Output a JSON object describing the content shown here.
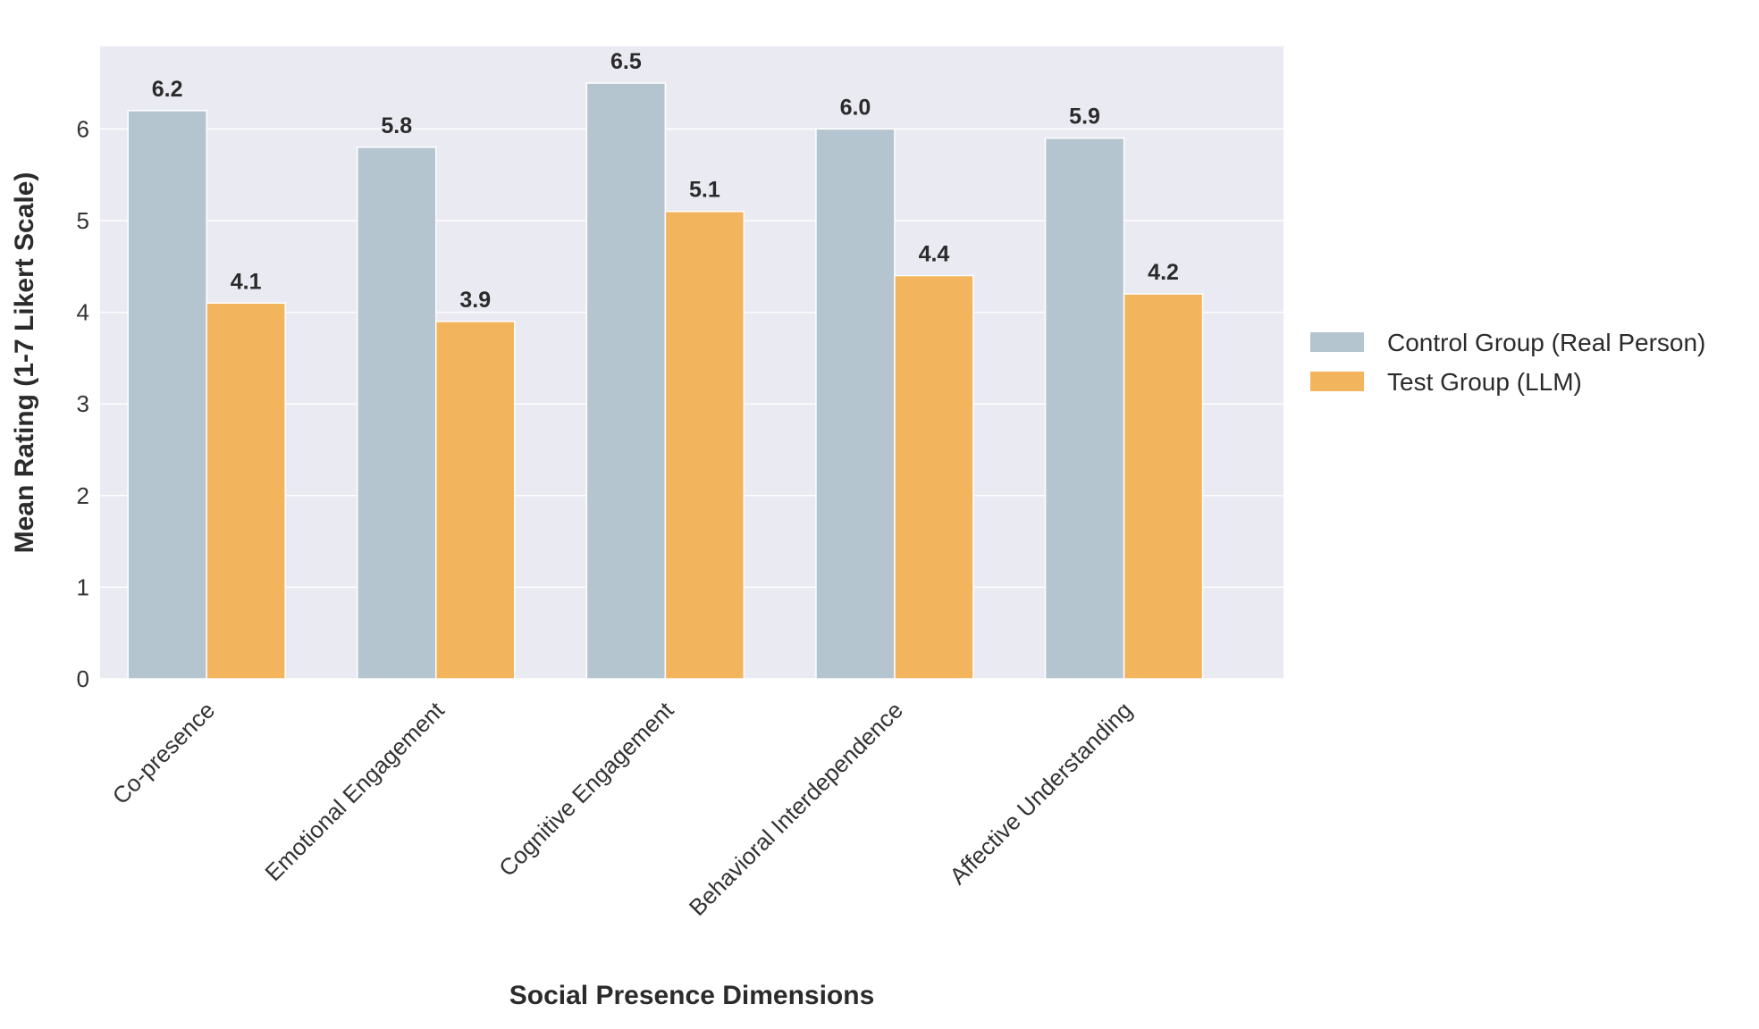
{
  "chart_data": {
    "type": "bar",
    "title": "",
    "xlabel": "Social Presence Dimensions",
    "ylabel": "Mean Rating (1-7 Likert Scale)",
    "categories": [
      "Co-presence",
      "Emotional Engagement",
      "Cognitive Engagement",
      "Behavioral Interdependence",
      "Affective Understanding"
    ],
    "series": [
      {
        "name": "Control Group (Real Person)",
        "values": [
          6.2,
          5.8,
          6.5,
          6.0,
          5.9
        ],
        "color": "#b4c5cf"
      },
      {
        "name": "Test Group (LLM)",
        "values": [
          4.1,
          3.9,
          5.1,
          4.4,
          4.2
        ],
        "color": "#f2b55e"
      }
    ],
    "value_labels": true,
    "value_label_format": "one-decimal",
    "ylim": [
      0,
      6.9
    ],
    "yticks": [
      0,
      1,
      2,
      3,
      4,
      5,
      6
    ],
    "grid": true,
    "plot_background": "#eaeaf2",
    "legend_position": "right"
  }
}
